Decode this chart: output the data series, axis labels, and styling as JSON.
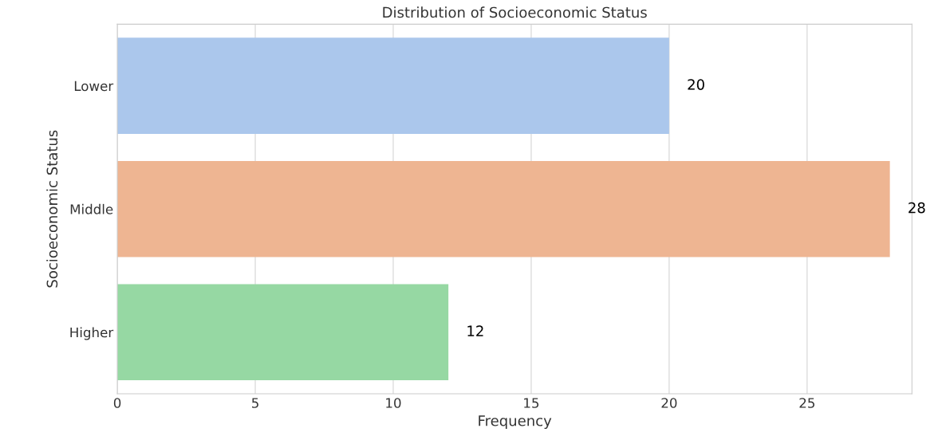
{
  "chart_data": {
    "type": "bar",
    "orientation": "horizontal",
    "title": "Distribution of Socioeconomic Status",
    "xlabel": "Frequency",
    "ylabel": "Socioeconomic Status",
    "categories": [
      "Lower",
      "Middle",
      "Higher"
    ],
    "values": [
      20,
      28,
      12
    ],
    "colors": [
      "#abc7ec",
      "#eeb592",
      "#96d8a3"
    ],
    "data_labels": true,
    "xlim": [
      0,
      28.8
    ],
    "xticks": [
      0,
      5,
      10,
      15,
      20,
      25
    ],
    "grid": "x"
  }
}
